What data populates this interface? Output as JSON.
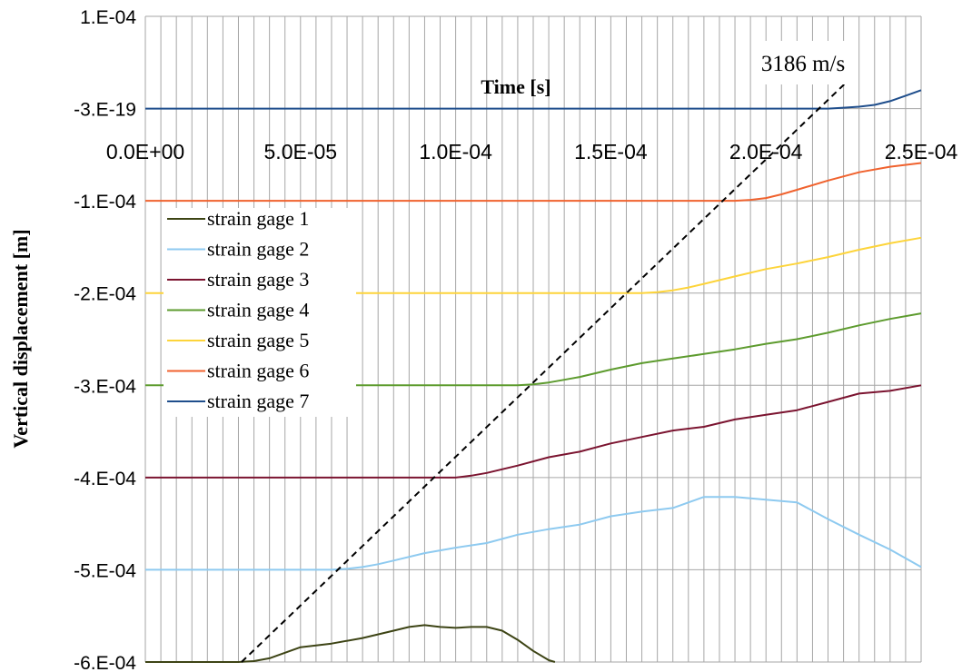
{
  "chart_data": {
    "type": "line",
    "title": "",
    "xlabel": "Time [s]",
    "ylabel": "Vertical displacement [m]",
    "xlim": [
      0,
      0.00025
    ],
    "ylim": [
      -0.0006,
      0.0001
    ],
    "x_ticks": [
      "0.0E+00",
      "5.0E-05",
      "1.0E-04",
      "1.5E-04",
      "2.0E-04",
      "2.5E-04"
    ],
    "x_tick_values": [
      0,
      5e-05,
      0.0001,
      0.00015,
      0.0002,
      0.00025
    ],
    "y_ticks": [
      "1.E-04",
      "-3.E-19",
      "-1.E-04",
      "-2.E-04",
      "-3.E-04",
      "-4.E-04",
      "-5.E-04",
      "-6.E-04"
    ],
    "y_tick_values": [
      0.0001,
      0,
      -0.0001,
      -0.0002,
      -0.0003,
      -0.0004,
      -0.0005,
      -0.0006
    ],
    "minor_gridline_step": 5e-06,
    "grid": true,
    "legend_position": "left",
    "series": [
      {
        "name": "strain gage 1",
        "color": "#3d4415",
        "x": [
          0,
          1e-05,
          2e-05,
          3e-05,
          3.5e-05,
          4e-05,
          4.5e-05,
          5e-05,
          5.5e-05,
          6e-05,
          7e-05,
          8e-05,
          8.5e-05,
          9e-05,
          9.5e-05,
          0.0001,
          0.000105,
          0.00011,
          0.000115,
          0.00012,
          0.000125,
          0.00013,
          0.000132
        ],
        "y": [
          -0.0006,
          -0.0006,
          -0.0006,
          -0.0006,
          -0.000599,
          -0.000596,
          -0.00059,
          -0.000584,
          -0.000582,
          -0.00058,
          -0.000574,
          -0.000566,
          -0.000562,
          -0.00056,
          -0.000562,
          -0.000563,
          -0.000562,
          -0.000562,
          -0.000566,
          -0.000576,
          -0.000588,
          -0.000598,
          -0.0006
        ]
      },
      {
        "name": "strain gage 2",
        "color": "#8ecaf0",
        "x": [
          0,
          5e-05,
          6e-05,
          6.5e-05,
          7e-05,
          7.5e-05,
          8e-05,
          9e-05,
          0.0001,
          0.00011,
          0.00012,
          0.00013,
          0.00014,
          0.00015,
          0.00016,
          0.00017,
          0.00018,
          0.00019,
          0.0002,
          0.00021,
          0.00022,
          0.00023,
          0.00024,
          0.00025
        ],
        "y": [
          -0.0005,
          -0.0005,
          -0.0005,
          -0.000499,
          -0.000497,
          -0.000494,
          -0.00049,
          -0.000482,
          -0.000476,
          -0.000471,
          -0.000462,
          -0.000456,
          -0.000451,
          -0.000442,
          -0.000437,
          -0.000433,
          -0.000421,
          -0.000421,
          -0.000424,
          -0.000427,
          -0.000445,
          -0.000462,
          -0.000478,
          -0.000497
        ]
      },
      {
        "name": "strain gage 3",
        "color": "#7b1430",
        "x": [
          0,
          5e-05,
          0.0001,
          0.000105,
          0.00011,
          0.00012,
          0.00013,
          0.00014,
          0.00015,
          0.00016,
          0.00017,
          0.00018,
          0.00019,
          0.0002,
          0.00021,
          0.00022,
          0.00023,
          0.00024,
          0.00025
        ],
        "y": [
          -0.0004,
          -0.0004,
          -0.0004,
          -0.000398,
          -0.000395,
          -0.000387,
          -0.000378,
          -0.000372,
          -0.000363,
          -0.000356,
          -0.000349,
          -0.000345,
          -0.000337,
          -0.000332,
          -0.000327,
          -0.000318,
          -0.000309,
          -0.000306,
          -0.0003
        ]
      },
      {
        "name": "strain gage 4",
        "color": "#5d9b2e",
        "x": [
          0,
          5e-05,
          0.0001,
          0.00012,
          0.000125,
          0.00013,
          0.000135,
          0.00014,
          0.00015,
          0.00016,
          0.00017,
          0.00018,
          0.00019,
          0.0002,
          0.00021,
          0.00022,
          0.00023,
          0.00024,
          0.00025
        ],
        "y": [
          -0.0003,
          -0.0003,
          -0.0003,
          -0.0003,
          -0.000299,
          -0.000297,
          -0.000294,
          -0.000291,
          -0.000283,
          -0.000276,
          -0.000271,
          -0.000266,
          -0.000261,
          -0.000255,
          -0.00025,
          -0.000243,
          -0.000235,
          -0.000228,
          -0.000222
        ]
      },
      {
        "name": "strain gage 5",
        "color": "#fdd43a",
        "x": [
          0,
          5e-05,
          0.0001,
          0.00015,
          0.00016,
          0.000165,
          0.00017,
          0.000175,
          0.00018,
          0.00019,
          0.0002,
          0.00021,
          0.00022,
          0.00023,
          0.00024,
          0.00025
        ],
        "y": [
          -0.0002,
          -0.0002,
          -0.0002,
          -0.0002,
          -0.0002,
          -0.000199,
          -0.000197,
          -0.000194,
          -0.00019,
          -0.000182,
          -0.000174,
          -0.000168,
          -0.000161,
          -0.000153,
          -0.000146,
          -0.00014
        ]
      },
      {
        "name": "strain gage 6",
        "color": "#f0622e",
        "x": [
          0,
          5e-05,
          0.0001,
          0.00015,
          0.00019,
          0.000195,
          0.0002,
          0.000205,
          0.00021,
          0.00022,
          0.00023,
          0.00024,
          0.00025
        ],
        "y": [
          -0.0001,
          -0.0001,
          -0.0001,
          -0.0001,
          -0.0001,
          -9.9e-05,
          -9.7e-05,
          -9.3e-05,
          -8.8e-05,
          -7.8e-05,
          -6.9e-05,
          -6.3e-05,
          -5.9e-05
        ]
      },
      {
        "name": "strain gage 7",
        "color": "#1f4e8c",
        "x": [
          0,
          5e-05,
          0.0001,
          0.00015,
          0.0002,
          0.00021,
          0.000215,
          0.00022,
          0.000225,
          0.00023,
          0.000235,
          0.00024,
          0.000245,
          0.00025
        ],
        "y": [
          0,
          0,
          0,
          0,
          0,
          0,
          0,
          0,
          1e-06,
          2e-06,
          4e-06,
          8e-06,
          1.4e-05,
          2e-05
        ]
      }
    ],
    "annotations": [
      {
        "type": "dashed-line",
        "label": "3186 m/s",
        "color": "#000000",
        "x": [
          3.1e-05,
          0.000227
        ],
        "y": [
          -0.0006,
          3.2e-05
        ]
      }
    ]
  }
}
